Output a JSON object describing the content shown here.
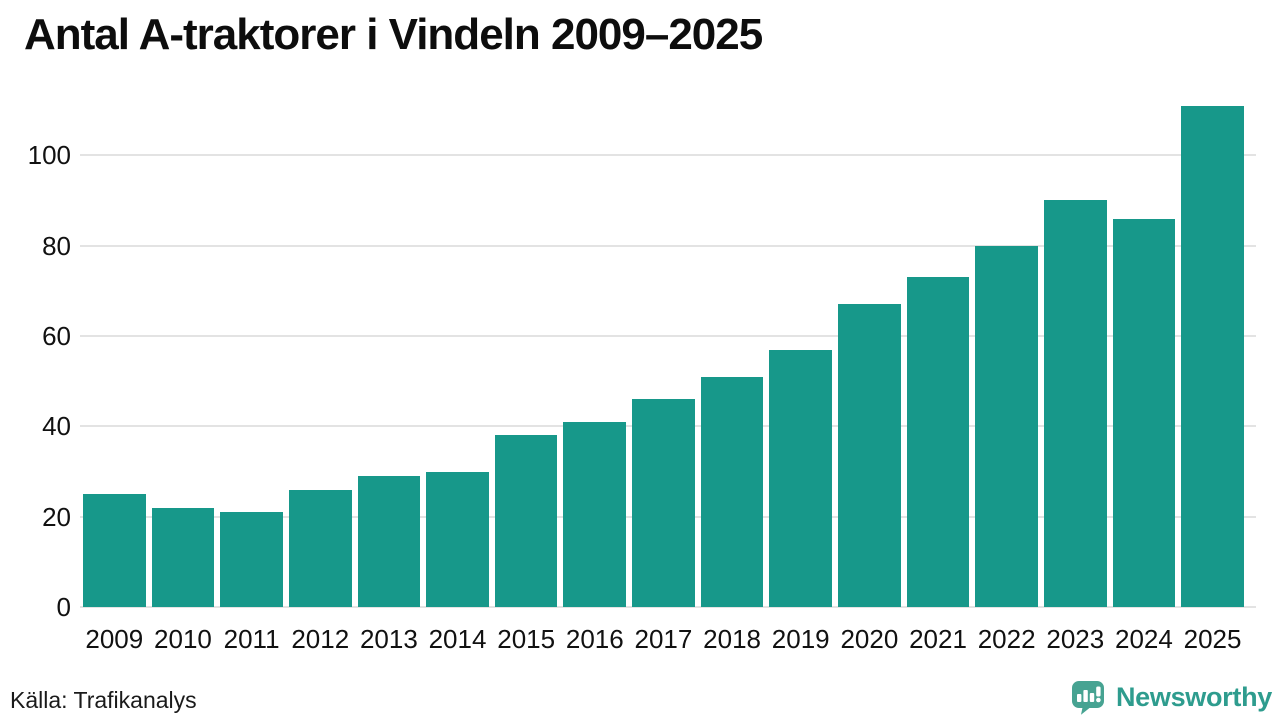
{
  "title": "Antal A-traktorer i Vindeln 2009–2025",
  "footer": {
    "source": "Källa: Trafikanalys",
    "brand_name": "Newsworthy"
  },
  "colors": {
    "bar": "#17988a",
    "grid": "#e3e3e3",
    "text": "#111111",
    "brand_text": "#2e9c8e",
    "brand_bubble": "#47a392",
    "brand_icon_marks": "#ffffff"
  },
  "chart_data": {
    "type": "bar",
    "categories": [
      "2009",
      "2010",
      "2011",
      "2012",
      "2013",
      "2014",
      "2015",
      "2016",
      "2017",
      "2018",
      "2019",
      "2020",
      "2021",
      "2022",
      "2023",
      "2024",
      "2025"
    ],
    "values": [
      25,
      22,
      21,
      26,
      29,
      30,
      38,
      41,
      46,
      51,
      57,
      67,
      73,
      80,
      90,
      86,
      111
    ],
    "title": "Antal A-traktorer i Vindeln 2009–2025",
    "xlabel": "",
    "ylabel": "",
    "ylim": [
      0,
      112
    ],
    "yticks": [
      0,
      20,
      40,
      60,
      80,
      100
    ],
    "grid": true,
    "legend": false,
    "bar_color": "#17988a"
  }
}
